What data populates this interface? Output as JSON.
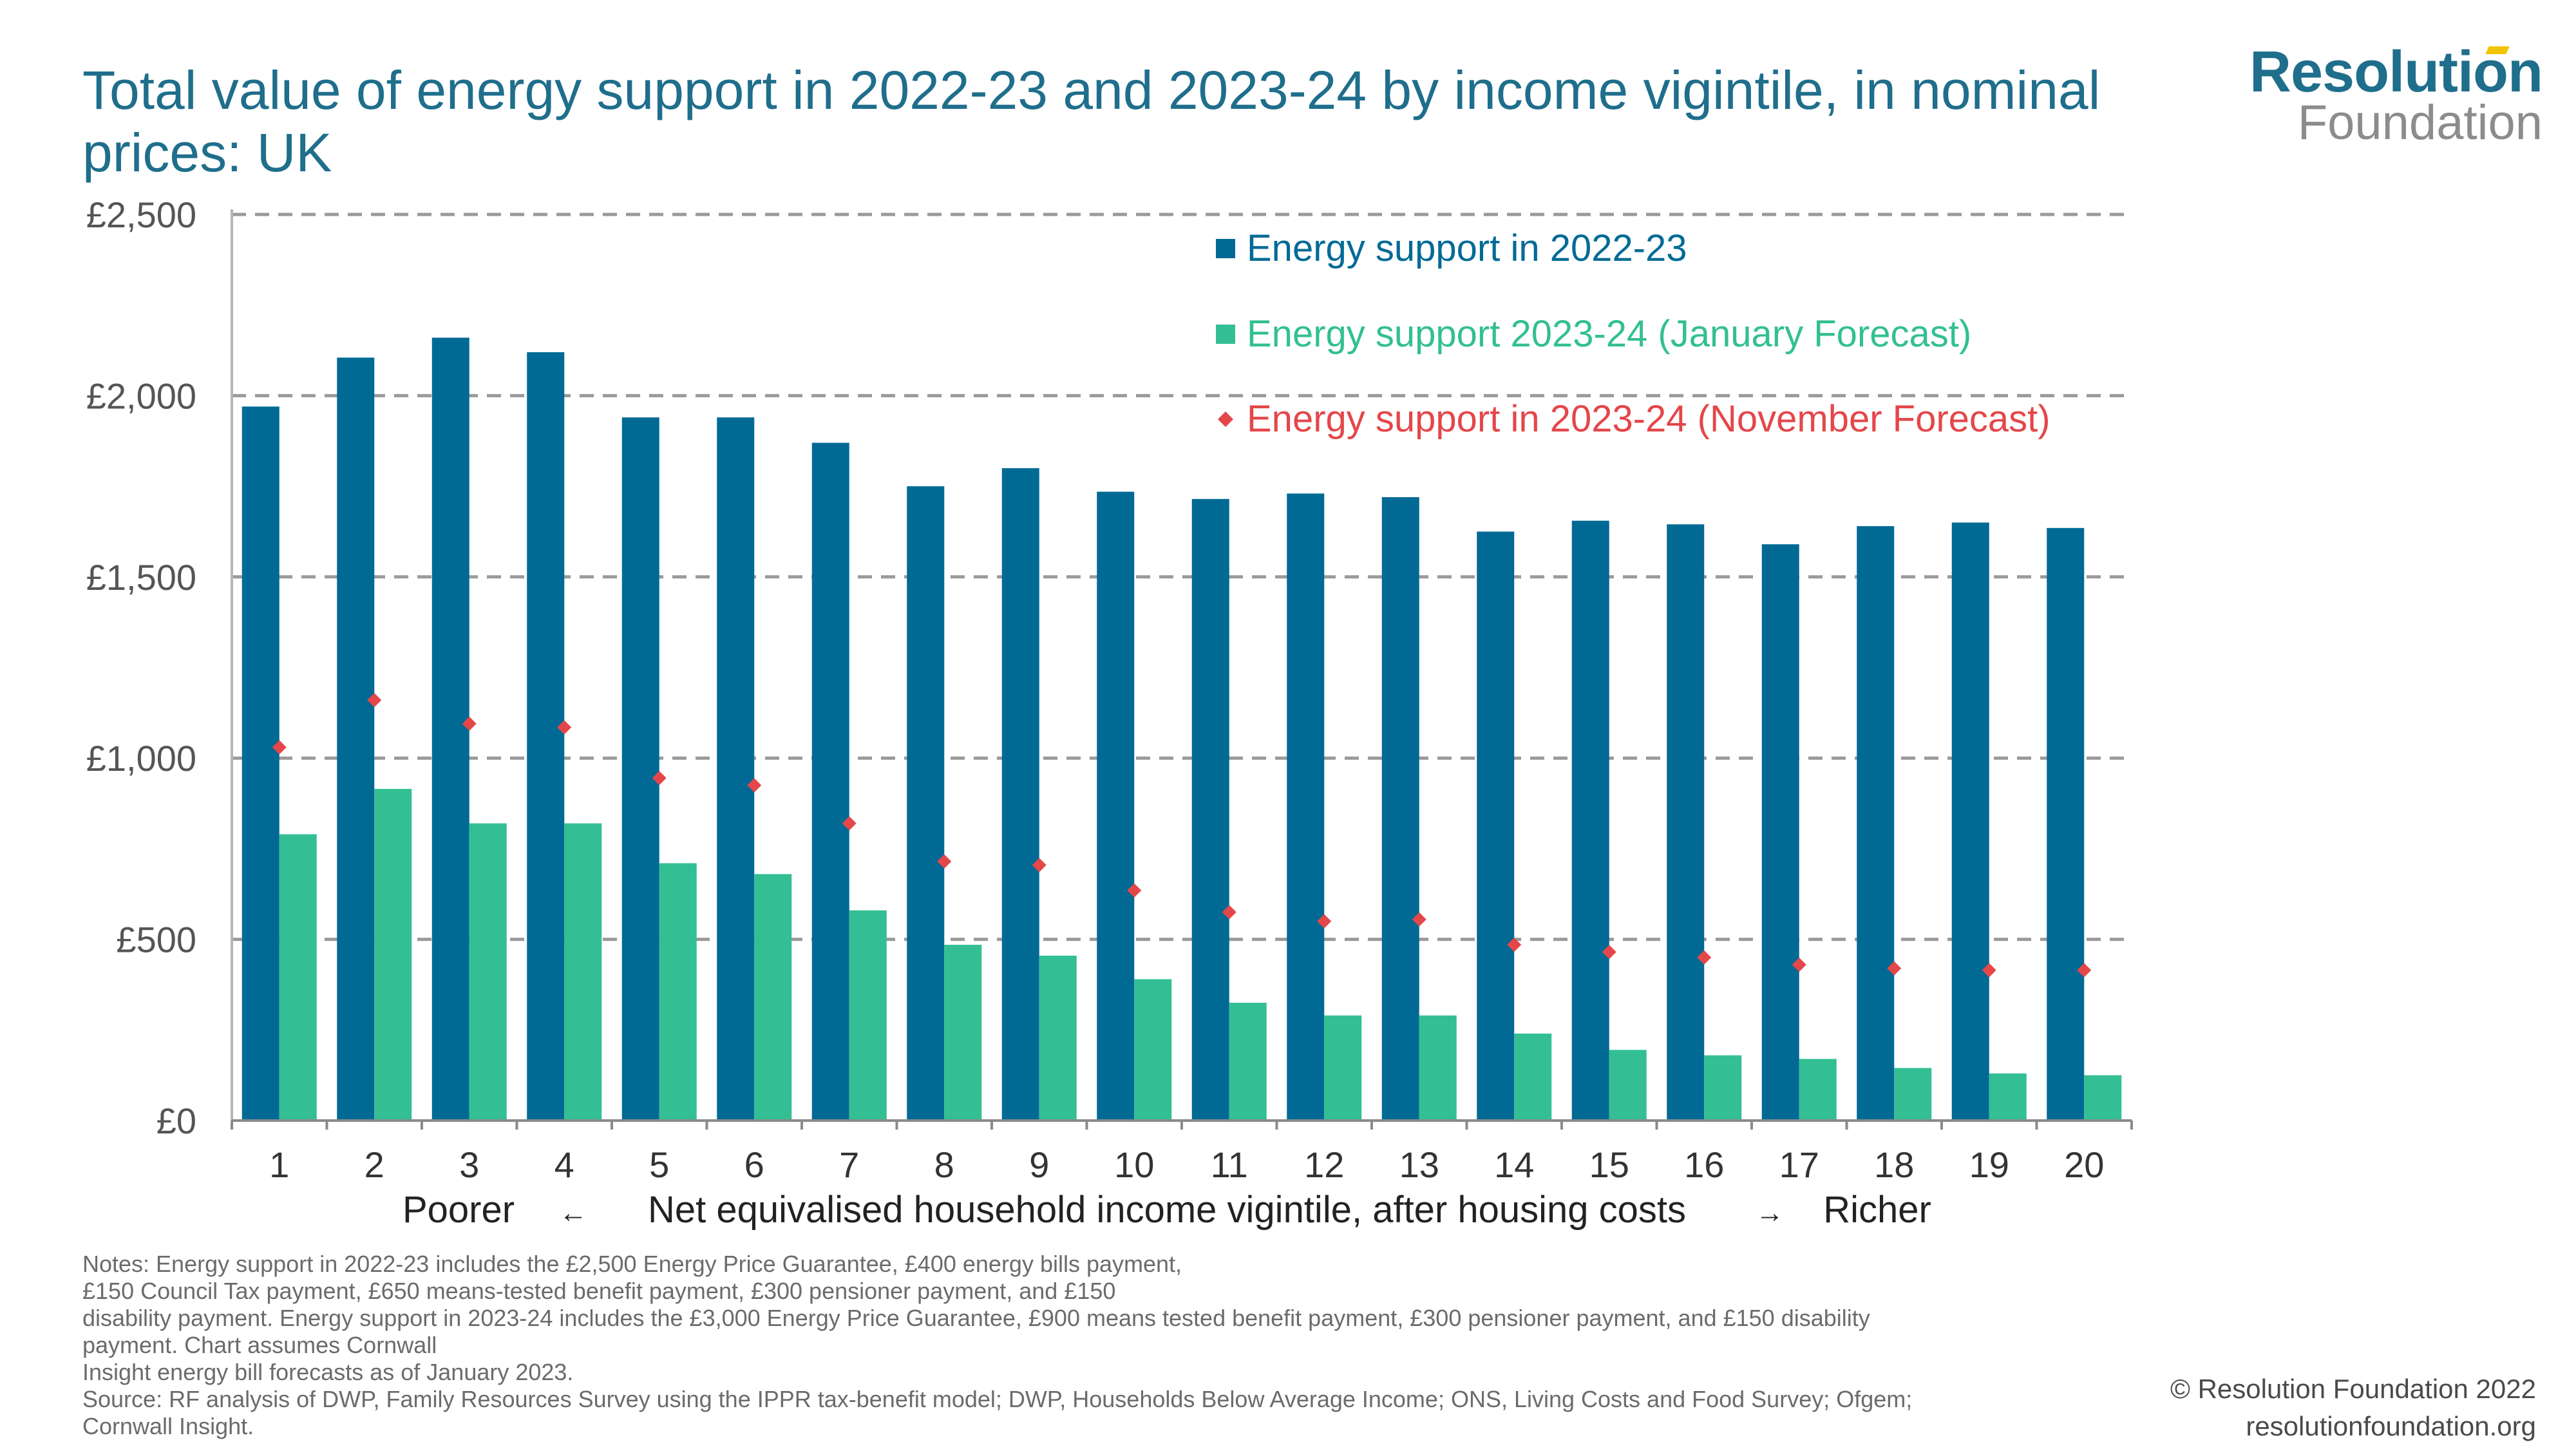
{
  "title": "Total value of energy support in 2022-23 and 2023-24 by income vigintile, in nominal prices: UK",
  "logo": {
    "line1": "Resolution",
    "line2": "Foundation"
  },
  "colors": {
    "series1": "#006a95",
    "series2": "#33bf93",
    "series3": "#e4474a",
    "title": "#1f6e8c"
  },
  "chart_data": {
    "type": "bar",
    "categories": [
      "1",
      "2",
      "3",
      "4",
      "5",
      "6",
      "7",
      "8",
      "9",
      "10",
      "11",
      "12",
      "13",
      "14",
      "15",
      "16",
      "17",
      "18",
      "19",
      "20"
    ],
    "series": [
      {
        "name": "Energy support in 2022-23",
        "kind": "bar",
        "color": "#006a95",
        "values": [
          1970,
          2105,
          2160,
          2120,
          1940,
          1940,
          1870,
          1750,
          1800,
          1735,
          1715,
          1730,
          1720,
          1625,
          1655,
          1645,
          1590,
          1640,
          1650,
          1635
        ]
      },
      {
        "name": "Energy support 2023-24 (January Forecast)",
        "kind": "bar",
        "color": "#33bf93",
        "values": [
          790,
          915,
          820,
          820,
          710,
          680,
          580,
          485,
          455,
          390,
          325,
          290,
          290,
          240,
          195,
          180,
          170,
          145,
          130,
          125
        ]
      },
      {
        "name": "Energy support in 2023-24 (November Forecast)",
        "kind": "marker",
        "color": "#e4474a",
        "values": [
          1030,
          1160,
          1095,
          1085,
          945,
          925,
          820,
          715,
          705,
          635,
          575,
          550,
          555,
          485,
          465,
          450,
          430,
          420,
          415,
          415
        ]
      }
    ],
    "yticks": [
      "£2,500",
      "£2,000",
      "£1,500",
      "£1,000",
      "£500",
      "£0"
    ],
    "ytick_values": [
      2500,
      2000,
      1500,
      1000,
      500,
      0
    ],
    "ylim": [
      0,
      2500
    ],
    "xlabel": "Net equivalised household income vigintile, after housing costs",
    "xlabel_left": "Poorer",
    "xlabel_left_arrow": "←",
    "xlabel_right": "Richer",
    "xlabel_right_arrow": "→",
    "grid": "horizontal dashed",
    "legend_position": "top-right"
  },
  "notes": [
    "Notes: Energy support in 2022-23 includes the £2,500 Energy Price Guarantee, £400 energy bills payment,",
    "£150 Council Tax payment, £650 means-tested benefit payment, £300 pensioner payment, and £150",
    "disability payment. Energy support in 2023-24 includes the £3,000 Energy Price Guarantee, £900 means tested benefit payment, £300 pensioner payment, and £150 disability",
    "payment. Chart assumes Cornwall",
    "Insight energy bill forecasts as of January 2023.",
    "Source: RF analysis of DWP, Family Resources Survey using the IPPR tax-benefit model; DWP, Households Below Average Income; ONS, Living Costs and Food Survey; Ofgem;",
    "Cornwall Insight."
  ],
  "footer": {
    "copyright": "© Resolution Foundation 2022",
    "url": "resolutionfoundation.org"
  }
}
